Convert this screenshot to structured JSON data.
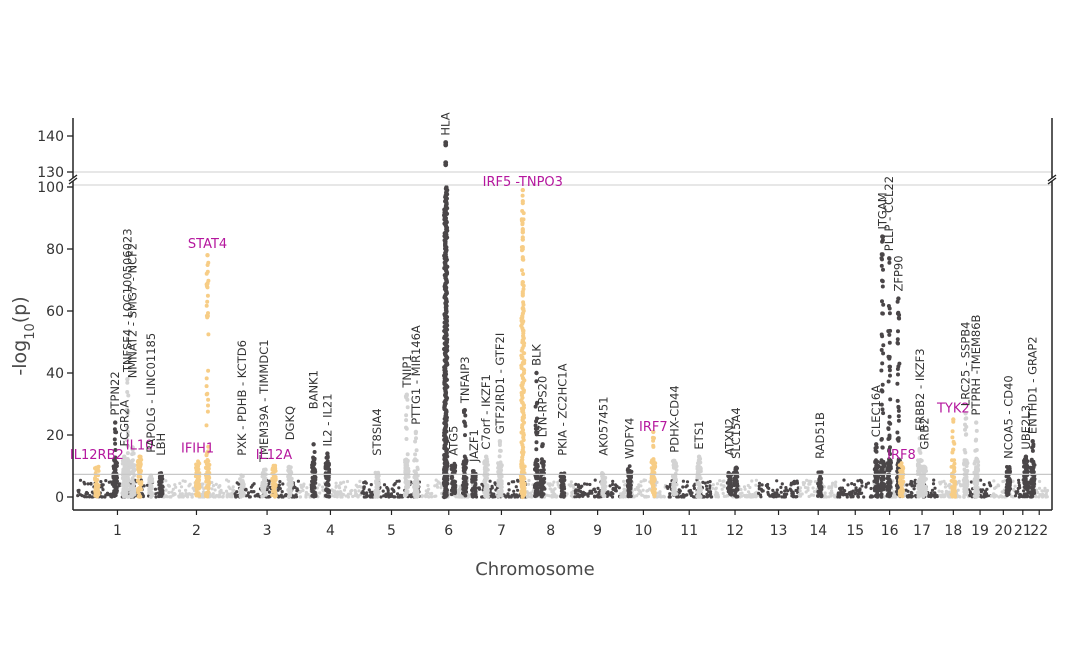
{
  "chart_data": {
    "type": "scatter",
    "subtype": "manhattan",
    "title": "",
    "xlabel": "Chromosome",
    "ylabel": "-log",
    "ylabel_sub": "10",
    "ylabel_suffix": "(p)",
    "ylim": [
      0,
      145
    ],
    "axis_break": [
      100,
      130
    ],
    "yticks_lower": [
      0,
      20,
      40,
      60,
      80,
      100
    ],
    "yticks_upper": [
      130,
      140
    ],
    "significance_line": 7.3,
    "grid": false,
    "colors": {
      "dark": "#4a4648",
      "light": "#d3d3d3",
      "highlight": "#f7cd86",
      "highlight_label": "#b5179e",
      "label": "#333333"
    },
    "chromosomes": [
      {
        "label": "1",
        "xmin": 0,
        "xmax": 10.6
      },
      {
        "label": "2",
        "xmin": 10.6,
        "xmax": 20.7
      },
      {
        "label": "3",
        "xmin": 20.7,
        "xmax": 29.1
      },
      {
        "label": "4",
        "xmin": 29.1,
        "xmax": 37.3
      },
      {
        "label": "5",
        "xmin": 37.3,
        "xmax": 45.1
      },
      {
        "label": "6",
        "xmin": 45.1,
        "xmax": 52.3
      },
      {
        "label": "7",
        "xmin": 52.3,
        "xmax": 58.9
      },
      {
        "label": "8",
        "xmin": 58.9,
        "xmax": 65.2
      },
      {
        "label": "9",
        "xmin": 65.2,
        "xmax": 71.2
      },
      {
        "label": "10",
        "xmin": 71.2,
        "xmax": 77.2
      },
      {
        "label": "11",
        "xmin": 77.2,
        "xmax": 83.2
      },
      {
        "label": "12",
        "xmin": 83.2,
        "xmax": 89.2
      },
      {
        "label": "13",
        "xmin": 89.2,
        "xmax": 94.6
      },
      {
        "label": "14",
        "xmin": 94.6,
        "xmax": 99.6
      },
      {
        "label": "15",
        "xmin": 99.6,
        "xmax": 104.3
      },
      {
        "label": "16",
        "xmin": 104.3,
        "xmax": 108.6
      },
      {
        "label": "17",
        "xmin": 108.6,
        "xmax": 112.8
      },
      {
        "label": "18",
        "xmin": 112.8,
        "xmax": 116.8
      },
      {
        "label": "19",
        "xmin": 116.8,
        "xmax": 119.8
      },
      {
        "label": "20",
        "xmin": 119.8,
        "xmax": 122.9
      },
      {
        "label": "21",
        "xmin": 122.9,
        "xmax": 124.9
      },
      {
        "label": "22",
        "xmin": 124.9,
        "xmax": 127.2
      }
    ],
    "peaks": [
      {
        "x": 5.0,
        "y": 24,
        "chr_color": "dark",
        "highlight": false,
        "label": "PTPN22",
        "label_y": 25
      },
      {
        "x": 2.6,
        "y": 10,
        "chr_color": "dark",
        "highlight": true,
        "label": "IL12RB2",
        "label_y": 11
      },
      {
        "x": 6.2,
        "y": 13,
        "chr_color": "light",
        "highlight": false,
        "label": "FCGR2A",
        "label_y": 15
      },
      {
        "x": 6.6,
        "y": 38,
        "chr_color": "light",
        "highlight": false,
        "label": "TNFSF4 - LOC100506023",
        "label_y": 39
      },
      {
        "x": 7.3,
        "y": 16,
        "chr_color": "light",
        "highlight": false,
        "label": "NMNAT2 - SMG7 - NCF2",
        "label_y": 37
      },
      {
        "x": 8.2,
        "y": 13,
        "chr_color": "light",
        "highlight": true,
        "label": "IL10",
        "label_y": 14
      },
      {
        "x": 9.7,
        "y": 7,
        "chr_color": "light",
        "highlight": false,
        "label": "PAPOLG - LINC01185",
        "label_y": 13
      },
      {
        "x": 11.0,
        "y": 8,
        "chr_color": "dark",
        "highlight": false,
        "label": "LBH",
        "label_y": 12
      },
      {
        "x": 15.8,
        "y": 12,
        "chr_color": "dark",
        "highlight": true,
        "label": "IFIH1",
        "label_y": 13
      },
      {
        "x": 17.1,
        "y": 78,
        "chr_color": "dark",
        "highlight": true,
        "label": "STAT4",
        "label_y": 79
      },
      {
        "x": 21.6,
        "y": 7.5,
        "chr_color": "light",
        "highlight": false,
        "label": "PXK - PDHB - KCTD6",
        "label_y": 12
      },
      {
        "x": 24.5,
        "y": 9,
        "chr_color": "light",
        "highlight": false,
        "label": "TMEM39A - TIMMDC1",
        "label_y": 10
      },
      {
        "x": 25.8,
        "y": 10.5,
        "chr_color": "light",
        "highlight": true,
        "label": "IL12A",
        "label_y": 11
      },
      {
        "x": 27.9,
        "y": 10,
        "chr_color": "light",
        "highlight": false,
        "label": "DGKQ",
        "label_y": 17
      },
      {
        "x": 31.0,
        "y": 17,
        "chr_color": "dark",
        "highlight": false,
        "label": "BANK1",
        "label_y": 27
      },
      {
        "x": 32.8,
        "y": 14,
        "chr_color": "dark",
        "highlight": false,
        "label": "IL2 - IL21",
        "label_y": 15
      },
      {
        "x": 39.3,
        "y": 8,
        "chr_color": "light",
        "highlight": false,
        "label": "ST8SIA4",
        "label_y": 12
      },
      {
        "x": 43.2,
        "y": 33,
        "chr_color": "light",
        "highlight": false,
        "label": "TNIP1",
        "label_y": 34
      },
      {
        "x": 44.4,
        "y": 21,
        "chr_color": "light",
        "highlight": false,
        "label": "PTTG1 - MIR146A",
        "label_y": 22
      },
      {
        "x": 48.3,
        "y": 138,
        "chr_color": "dark",
        "highlight": false,
        "label": "HLA",
        "label_y": 139
      },
      {
        "x": 49.3,
        "y": 11,
        "chr_color": "dark",
        "highlight": false,
        "label": "ATG5",
        "label_y": 12
      },
      {
        "x": 50.8,
        "y": 28,
        "chr_color": "dark",
        "highlight": false,
        "label": "TNFAIP3",
        "label_y": 29
      },
      {
        "x": 52.0,
        "y": 9,
        "chr_color": "dark",
        "highlight": false,
        "label": "JAZF1",
        "label_y": 10
      },
      {
        "x": 53.6,
        "y": 13,
        "chr_color": "light",
        "highlight": false,
        "label": "C7orf - IKZF1",
        "label_y": 14
      },
      {
        "x": 55.4,
        "y": 18,
        "chr_color": "light",
        "highlight": false,
        "label": "GTF2IRD1 - GTF2I",
        "label_y": 19
      },
      {
        "x": 58.4,
        "y": 99,
        "chr_color": "light",
        "highlight": true,
        "label": "IRF5 -TNPO3",
        "label_y": 99
      },
      {
        "x": 60.2,
        "y": 40,
        "chr_color": "dark",
        "highlight": false,
        "label": "BLK",
        "label_y": 41
      },
      {
        "x": 61.0,
        "y": 17,
        "chr_color": "dark",
        "highlight": false,
        "label": "LYN-RPS20",
        "label_y": 18
      },
      {
        "x": 63.6,
        "y": 8,
        "chr_color": "dark",
        "highlight": false,
        "label": "PKIA - ZC2HC1A",
        "label_y": 12
      },
      {
        "x": 69.0,
        "y": 8,
        "chr_color": "light",
        "highlight": false,
        "label": "AK057451",
        "label_y": 12
      },
      {
        "x": 72.4,
        "y": 10,
        "chr_color": "dark",
        "highlight": false,
        "label": "WDFY4",
        "label_y": 11
      },
      {
        "x": 75.5,
        "y": 21,
        "chr_color": "dark",
        "highlight": true,
        "label": "IRF7",
        "label_y": 20
      },
      {
        "x": 78.3,
        "y": 12,
        "chr_color": "light",
        "highlight": false,
        "label": "PDHX-CD44",
        "label_y": 13
      },
      {
        "x": 81.5,
        "y": 13,
        "chr_color": "light",
        "highlight": false,
        "label": "ETS1",
        "label_y": 14
      },
      {
        "x": 85.5,
        "y": 8,
        "chr_color": "dark",
        "highlight": false,
        "label": "ATXN2",
        "label_y": 12
      },
      {
        "x": 86.3,
        "y": 10,
        "chr_color": "dark",
        "highlight": false,
        "label": "SLC15A4",
        "label_y": 11
      },
      {
        "x": 97.3,
        "y": 8,
        "chr_color": "dark",
        "highlight": false,
        "label": "RAD51B",
        "label_y": 11
      },
      {
        "x": 104.7,
        "y": 17,
        "chr_color": "dark",
        "highlight": false,
        "label": "CLEC16A",
        "label_y": 18
      },
      {
        "x": 105.5,
        "y": 84,
        "chr_color": "dark",
        "highlight": false,
        "label": "ITGAM",
        "label_y": 85
      },
      {
        "x": 106.4,
        "y": 77,
        "chr_color": "dark",
        "highlight": false,
        "label": "PLLP - CCL22",
        "label_y": 78
      },
      {
        "x": 107.6,
        "y": 64,
        "chr_color": "dark",
        "highlight": false,
        "label": "ZFP90",
        "label_y": 65
      },
      {
        "x": 108.0,
        "y": 11,
        "chr_color": "dark",
        "highlight": true,
        "label": "IRF8",
        "label_y": 11
      },
      {
        "x": 110.4,
        "y": 19,
        "chr_color": "light",
        "highlight": false,
        "label": "ERBB2 - IKZF3",
        "label_y": 20
      },
      {
        "x": 111.0,
        "y": 10,
        "chr_color": "light",
        "highlight": false,
        "label": "GRB2",
        "label_y": 14
      },
      {
        "x": 114.8,
        "y": 25,
        "chr_color": "dark",
        "highlight": true,
        "label": "TYK2",
        "label_y": 26
      },
      {
        "x": 116.4,
        "y": 27,
        "chr_color": "light",
        "highlight": false,
        "label": "LRC25 - SSPB4",
        "label_y": 28
      },
      {
        "x": 117.8,
        "y": 24,
        "chr_color": "light",
        "highlight": false,
        "label": "PTPRH -TMEM86B",
        "label_y": 25
      },
      {
        "x": 122.0,
        "y": 10,
        "chr_color": "dark",
        "highlight": false,
        "label": "NCOA5 - CD40",
        "label_y": 11
      },
      {
        "x": 124.3,
        "y": 13,
        "chr_color": "dark",
        "highlight": false,
        "label": "UBE2L3",
        "label_y": 14
      },
      {
        "x": 125.2,
        "y": 18,
        "chr_color": "dark",
        "highlight": false,
        "label": "ENTHD1 - GRAP2",
        "label_y": 19
      }
    ]
  }
}
